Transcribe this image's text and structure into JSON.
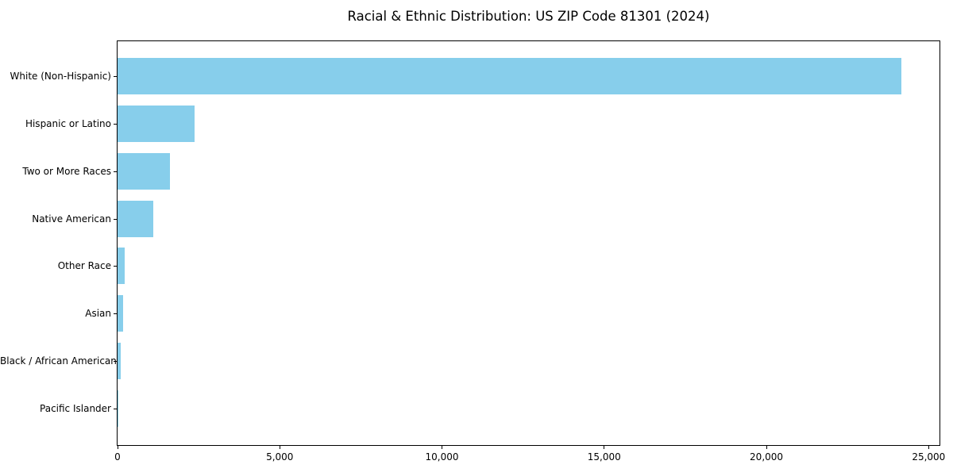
{
  "chart_data": {
    "type": "bar",
    "orientation": "horizontal",
    "title": "Racial & Ethnic Distribution: US ZIP Code 81301 (2024)",
    "categories": [
      "White (Non-Hispanic)",
      "Hispanic or Latino",
      "Two or More Races",
      "Native American",
      "Other Race",
      "Asian",
      "Black / African American",
      "Pacific Islander"
    ],
    "values": [
      24160,
      2370,
      1615,
      1100,
      230,
      180,
      110,
      10
    ],
    "xlabel": "",
    "ylabel": "",
    "xlim": [
      0,
      25335
    ],
    "xticks": {
      "values": [
        0,
        5000,
        10000,
        15000,
        20000,
        25000
      ],
      "labels": [
        "0",
        "5,000",
        "10,000",
        "15,000",
        "20,000",
        "25,000"
      ]
    },
    "bar_color": "#87CEEB",
    "background_color": "#ffffff",
    "text_color": "#000000",
    "grid": false,
    "legend": null
  }
}
